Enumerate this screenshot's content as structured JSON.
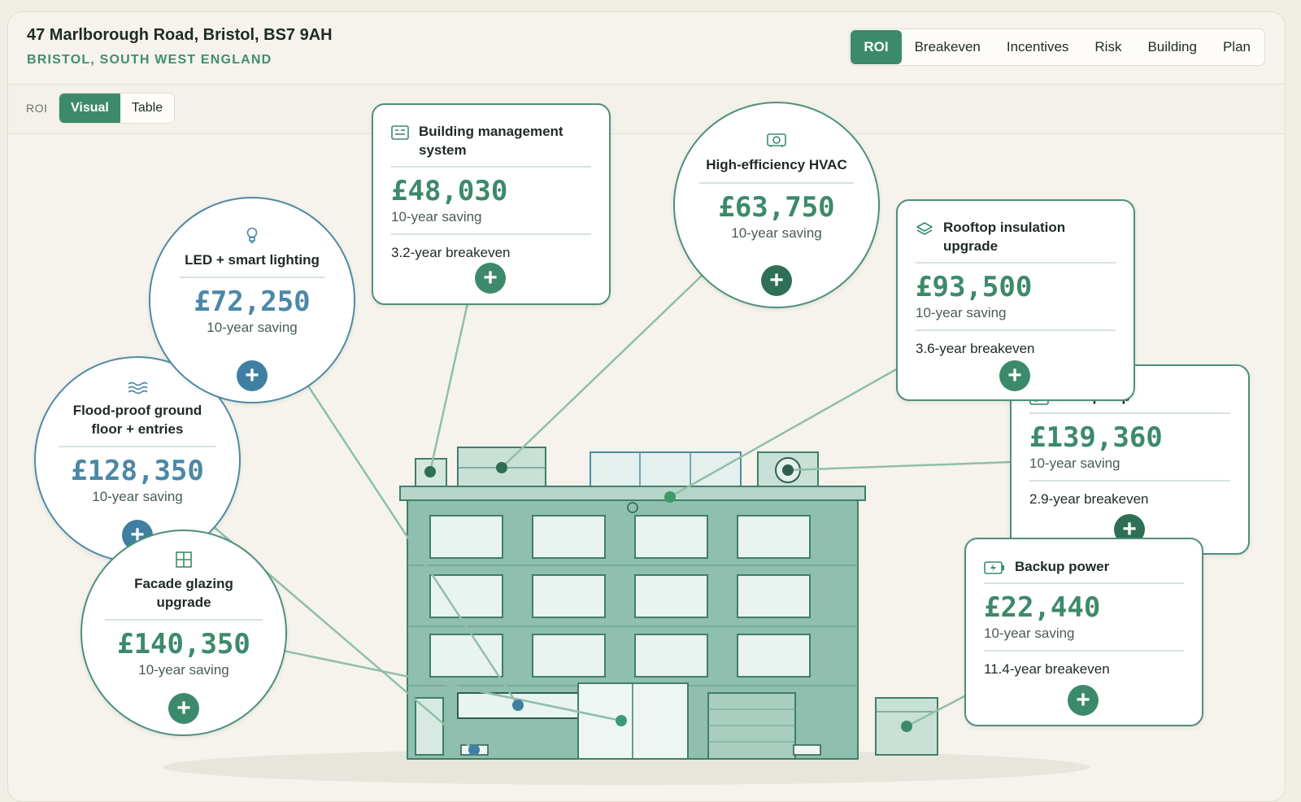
{
  "header": {
    "address": "47 Marlborough Road, Bristol, BS7 9AH",
    "region": "BRISTOL, SOUTH WEST ENGLAND",
    "tabs": [
      {
        "label": "ROI",
        "active": true
      },
      {
        "label": "Breakeven",
        "active": false
      },
      {
        "label": "Incentives",
        "active": false
      },
      {
        "label": "Risk",
        "active": false
      },
      {
        "label": "Building",
        "active": false
      },
      {
        "label": "Plan",
        "active": false
      }
    ]
  },
  "view": {
    "section_label": "ROI",
    "modes": [
      {
        "label": "Visual",
        "active": true
      },
      {
        "label": "Table",
        "active": false
      }
    ]
  },
  "measures": {
    "bms": {
      "title": "Building management system",
      "amount": "£48,030",
      "saving_label": "10-year saving",
      "breakeven": "3.2-year breakeven",
      "icon": "control-panel-icon"
    },
    "hvac": {
      "title": "High-efficiency HVAC",
      "amount": "£63,750",
      "saving_label": "10-year saving",
      "icon": "hvac-unit-icon"
    },
    "rooftop": {
      "title": "Rooftop insulation upgrade",
      "amount": "£93,500",
      "saving_label": "10-year saving",
      "breakeven": "3.6-year breakeven",
      "icon": "layers-icon"
    },
    "heatpump": {
      "title": "Heat pump",
      "amount": "£139,360",
      "saving_label": "10-year saving",
      "breakeven": "2.9-year breakeven",
      "icon": "heat-pump-icon"
    },
    "backup": {
      "title": "Backup power",
      "amount": "£22,440",
      "saving_label": "10-year saving",
      "breakeven": "11.4-year breakeven",
      "icon": "battery-bolt-icon"
    },
    "led": {
      "title": "LED + smart lighting",
      "amount": "£72,250",
      "saving_label": "10-year saving",
      "icon": "lightbulb-icon"
    },
    "flood": {
      "title": "Flood-proof ground floor + entries",
      "amount": "£128,350",
      "saving_label": "10-year saving",
      "icon": "waves-icon"
    },
    "facade": {
      "title": "Facade glazing upgrade",
      "amount": "£140,350",
      "saving_label": "10-year saving",
      "icon": "window-grid-icon"
    }
  },
  "colors": {
    "accent": "#3c8a6b",
    "accent_blue": "#4b88a6",
    "building": "#8fbfae",
    "background": "#f6f3ec"
  }
}
